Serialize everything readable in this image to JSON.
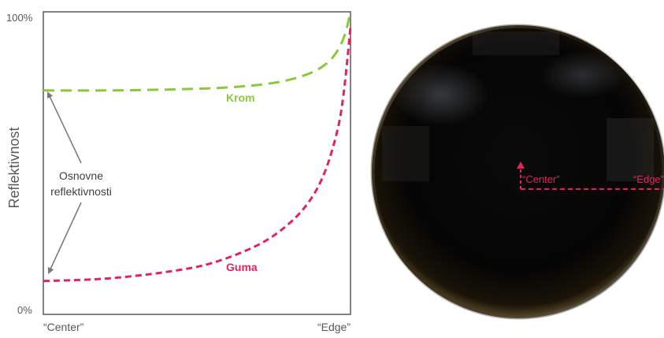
{
  "chart_data": {
    "type": "line",
    "title": "",
    "xlabel": "",
    "ylabel": "Reflektivnost",
    "x_tick_labels": [
      "“Center”",
      "“Edge”"
    ],
    "y_tick_labels": [
      "0%",
      "100%"
    ],
    "xlim": [
      0,
      1
    ],
    "ylim": [
      0,
      100
    ],
    "grid": false,
    "series": [
      {
        "name": "Krom",
        "color": "#8dc63f",
        "style": "dashed",
        "x": [
          0,
          0.2,
          0.4,
          0.6,
          0.75,
          0.85,
          0.91,
          0.95,
          0.98,
          1.0
        ],
        "values": [
          74,
          74,
          74.3,
          75,
          76.5,
          79,
          82,
          86,
          92,
          100
        ]
      },
      {
        "name": "Guma",
        "color": "#e0245e",
        "style": "dashed",
        "x": [
          0,
          0.2,
          0.4,
          0.55,
          0.7,
          0.8,
          0.87,
          0.92,
          0.96,
          0.98,
          1.0
        ],
        "values": [
          11,
          11.8,
          14,
          17,
          23,
          30,
          38,
          48,
          62,
          75,
          95
        ]
      }
    ],
    "annotation": {
      "text_lines": [
        "Osnovne",
        "reflektivnosti"
      ],
      "arrow_color": "#808080"
    }
  },
  "sphere_labels": {
    "center": "“Center”",
    "edge": "“Edge”",
    "color": "#e0245e"
  }
}
